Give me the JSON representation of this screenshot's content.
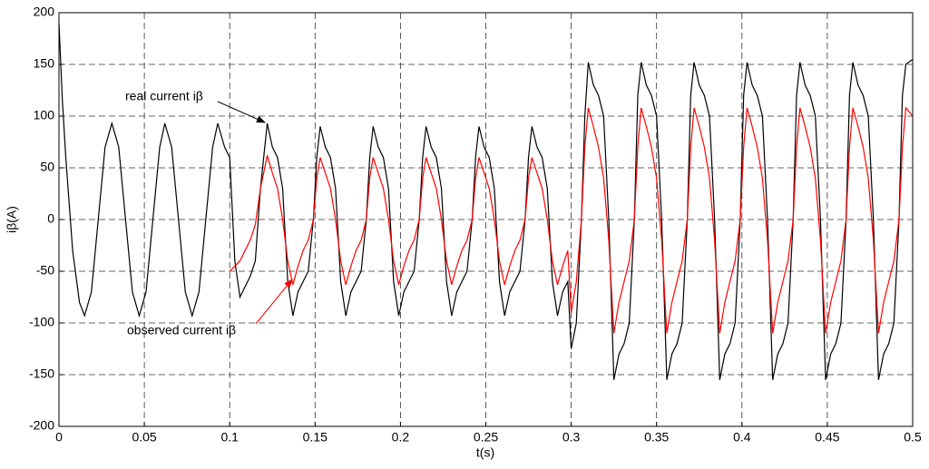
{
  "chart_data": {
    "type": "line",
    "x_label": "t(s)",
    "y_label": "iβ(A)",
    "xlim": [
      0,
      0.5
    ],
    "ylim": [
      -200,
      200
    ],
    "xticks": [
      0,
      0.05,
      0.1,
      0.15,
      0.2,
      0.25,
      0.3,
      0.35,
      0.4,
      0.45,
      0.5
    ],
    "yticks": [
      -200,
      -150,
      -100,
      -50,
      0,
      50,
      100,
      150,
      200
    ],
    "grid": true,
    "annotations": [
      {
        "text": "real current iβ",
        "color": "#000000"
      },
      {
        "text": "observed current iβ",
        "color": "#ff0000"
      }
    ],
    "x": [
      0,
      0.002,
      0.004,
      0.008,
      0.012,
      0.015,
      0.019,
      0.023,
      0.027,
      0.031,
      0.035,
      0.039,
      0.043,
      0.047,
      0.051,
      0.055,
      0.059,
      0.062,
      0.066,
      0.07,
      0.074,
      0.078,
      0.082,
      0.086,
      0.09,
      0.093,
      0.097,
      0.1,
      0.103,
      0.106,
      0.109,
      0.112,
      0.115,
      0.118,
      0.122,
      0.125,
      0.128,
      0.131,
      0.134,
      0.137,
      0.14,
      0.143,
      0.146,
      0.149,
      0.151,
      0.153,
      0.156,
      0.159,
      0.162,
      0.165,
      0.168,
      0.171,
      0.174,
      0.177,
      0.18,
      0.182,
      0.184,
      0.187,
      0.19,
      0.193,
      0.196,
      0.199,
      0.202,
      0.205,
      0.208,
      0.211,
      0.213,
      0.215,
      0.218,
      0.221,
      0.224,
      0.227,
      0.23,
      0.233,
      0.236,
      0.239,
      0.242,
      0.244,
      0.246,
      0.249,
      0.252,
      0.255,
      0.258,
      0.261,
      0.264,
      0.267,
      0.27,
      0.273,
      0.275,
      0.277,
      0.28,
      0.283,
      0.286,
      0.289,
      0.292,
      0.295,
      0.298,
      0.3,
      0.303,
      0.306,
      0.308,
      0.31,
      0.313,
      0.316,
      0.319,
      0.322,
      0.325,
      0.328,
      0.331,
      0.334,
      0.337,
      0.339,
      0.341,
      0.344,
      0.347,
      0.35,
      0.353,
      0.356,
      0.359,
      0.362,
      0.365,
      0.368,
      0.37,
      0.372,
      0.375,
      0.378,
      0.381,
      0.384,
      0.387,
      0.39,
      0.393,
      0.396,
      0.399,
      0.401,
      0.403,
      0.406,
      0.409,
      0.412,
      0.415,
      0.418,
      0.421,
      0.424,
      0.427,
      0.43,
      0.432,
      0.434,
      0.437,
      0.44,
      0.443,
      0.446,
      0.449,
      0.452,
      0.455,
      0.458,
      0.461,
      0.463,
      0.465,
      0.468,
      0.471,
      0.474,
      0.477,
      0.48,
      0.483,
      0.486,
      0.489,
      0.492,
      0.494,
      0.496,
      0.5
    ],
    "series": [
      {
        "name": "real current iβ",
        "color": "#000000",
        "values": [
          190,
          115,
          60,
          -30,
          -80,
          -93,
          -70,
          0,
          70,
          93,
          70,
          0,
          -70,
          -93,
          -70,
          0,
          70,
          93,
          70,
          0,
          -70,
          -93,
          -70,
          0,
          70,
          93,
          70,
          60,
          -40,
          -75,
          -65,
          -55,
          -40,
          30,
          93,
          70,
          60,
          30,
          -60,
          -93,
          -70,
          -60,
          -50,
          0,
          60,
          90,
          70,
          60,
          30,
          -60,
          -93,
          -70,
          -60,
          -50,
          0,
          60,
          90,
          70,
          60,
          30,
          -60,
          -93,
          -70,
          -60,
          -50,
          0,
          60,
          90,
          70,
          60,
          30,
          -60,
          -93,
          -70,
          -60,
          -50,
          0,
          60,
          90,
          70,
          60,
          30,
          -60,
          -93,
          -70,
          -60,
          -50,
          0,
          60,
          90,
          70,
          60,
          30,
          -60,
          -93,
          -70,
          -60,
          -125,
          -100,
          0,
          100,
          152,
          130,
          120,
          100,
          0,
          -155,
          -130,
          -120,
          -100,
          0,
          120,
          152,
          130,
          120,
          100,
          0,
          -155,
          -130,
          -120,
          -100,
          0,
          120,
          152,
          130,
          120,
          100,
          0,
          -155,
          -130,
          -120,
          -100,
          0,
          120,
          152,
          130,
          120,
          100,
          0,
          -155,
          -130,
          -120,
          -100,
          0,
          120,
          152,
          130,
          120,
          100,
          0,
          -155,
          -130,
          -120,
          -100,
          0,
          120,
          152,
          130,
          120,
          100,
          0,
          -155,
          -130,
          -120,
          -100,
          0,
          120,
          150,
          155
        ]
      },
      {
        "name": "observed current iβ",
        "color": "#ff0000",
        "values": [
          null,
          null,
          null,
          null,
          null,
          null,
          null,
          null,
          null,
          null,
          null,
          null,
          null,
          null,
          null,
          null,
          null,
          null,
          null,
          null,
          null,
          null,
          null,
          null,
          null,
          null,
          null,
          -50,
          -45,
          -40,
          -30,
          -20,
          -5,
          30,
          62,
          45,
          30,
          0,
          -40,
          -63,
          -45,
          -30,
          -20,
          0,
          40,
          60,
          45,
          30,
          0,
          -40,
          -63,
          -45,
          -30,
          -20,
          0,
          40,
          60,
          45,
          30,
          0,
          -40,
          -63,
          -45,
          -30,
          -20,
          0,
          40,
          60,
          45,
          30,
          0,
          -40,
          -63,
          -45,
          -30,
          -20,
          0,
          40,
          60,
          45,
          30,
          0,
          -40,
          -63,
          -45,
          -30,
          -20,
          0,
          40,
          60,
          45,
          30,
          0,
          -40,
          -63,
          -45,
          -30,
          -90,
          -60,
          0,
          70,
          108,
          90,
          70,
          40,
          -20,
          -110,
          -80,
          -60,
          -40,
          0,
          70,
          108,
          90,
          70,
          40,
          -20,
          -110,
          -80,
          -60,
          -40,
          0,
          70,
          108,
          90,
          70,
          40,
          -20,
          -110,
          -80,
          -60,
          -40,
          0,
          70,
          108,
          90,
          70,
          40,
          -20,
          -110,
          -80,
          -60,
          -40,
          0,
          70,
          108,
          90,
          70,
          40,
          -20,
          -110,
          -80,
          -60,
          -40,
          0,
          70,
          108,
          90,
          70,
          40,
          -20,
          -110,
          -80,
          -60,
          -40,
          0,
          70,
          108,
          100
        ]
      }
    ]
  }
}
